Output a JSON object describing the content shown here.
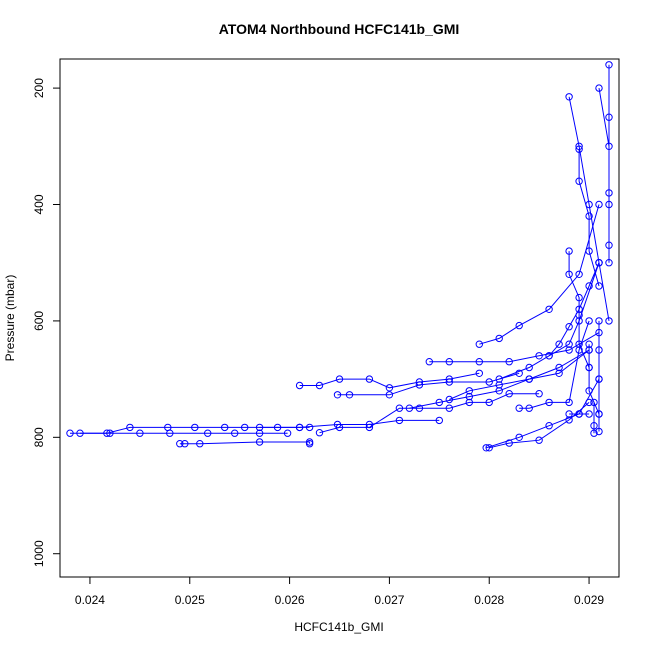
{
  "chart_data": {
    "type": "scatter",
    "title": "ATOM4 Northbound HCFC141b_GMI",
    "xlabel": "HCFC141b_GMI",
    "ylabel": "Pressure (mbar)",
    "xlim": [
      0.0237,
      0.0293
    ],
    "ylim": [
      1040,
      150
    ],
    "y_reversed": true,
    "x_ticks": [
      0.024,
      0.025,
      0.026,
      0.027,
      0.028,
      0.029
    ],
    "x_tick_labels": [
      "0.024",
      "0.025",
      "0.026",
      "0.027",
      "0.028",
      "0.029"
    ],
    "y_ticks": [
      200,
      400,
      600,
      800,
      1000
    ],
    "y_tick_labels": [
      "200",
      "400",
      "600",
      "800",
      "1000"
    ],
    "grid": false,
    "legend": "none",
    "marker": "open-circle",
    "color": "#0000ff",
    "series": [
      {
        "x": [
          0.0238,
          0.02417,
          0.0244,
          0.02478,
          0.02505,
          0.02535,
          0.02555,
          0.02588,
          0.0261,
          0.0262
        ],
        "y": [
          793,
          793,
          783,
          783,
          783,
          783,
          783,
          783,
          783,
          783
        ]
      },
      {
        "x": [
          0.0239,
          0.0242,
          0.0245,
          0.0248,
          0.02518,
          0.02545,
          0.0257,
          0.02598
        ],
        "y": [
          793,
          793,
          793,
          793,
          793,
          793,
          793,
          793
        ]
      },
      {
        "x": [
          0.0249,
          0.02495,
          0.0251,
          0.0257,
          0.0262,
          0.0262
        ],
        "y": [
          811,
          811,
          811,
          808,
          808,
          811
        ]
      },
      {
        "x": [
          0.0257,
          0.0261,
          0.02648,
          0.0268,
          0.0271,
          0.0275
        ],
        "y": [
          783,
          783,
          778,
          778,
          771,
          771
        ]
      },
      {
        "x": [
          0.0263,
          0.0265,
          0.0268,
          0.0271,
          0.0273,
          0.0276,
          0.0278,
          0.028,
          0.0282,
          0.0285
        ],
        "y": [
          792,
          783,
          783,
          750,
          750,
          750,
          740,
          740,
          725,
          725
        ]
      },
      {
        "x": [
          0.0261,
          0.0263,
          0.0265,
          0.0268,
          0.027,
          0.0273,
          0.0276,
          0.0279
        ],
        "y": [
          711,
          711,
          700,
          700,
          715,
          705,
          700,
          690
        ]
      },
      {
        "x": [
          0.02648,
          0.0266,
          0.027,
          0.0273,
          0.0276,
          0.028,
          0.0283
        ],
        "y": [
          727,
          727,
          727,
          710,
          705,
          705,
          690
        ]
      },
      {
        "x": [
          0.0272,
          0.0275,
          0.0278,
          0.0281,
          0.0284,
          0.0287,
          0.029
        ],
        "y": [
          750,
          740,
          730,
          720,
          700,
          680,
          650
        ]
      },
      {
        "x": [
          0.0274,
          0.0276,
          0.0279,
          0.0282,
          0.0285,
          0.0288,
          0.0291
        ],
        "y": [
          670,
          670,
          670,
          670,
          660,
          650,
          620
        ]
      },
      {
        "x": [
          0.0276,
          0.0278,
          0.0281,
          0.0284,
          0.0287,
          0.029
        ],
        "y": [
          735,
          720,
          710,
          700,
          690,
          650
        ]
      },
      {
        "x": [
          0.0279,
          0.0281,
          0.0283,
          0.0286,
          0.0289,
          0.0291
        ],
        "y": [
          640,
          630,
          608,
          580,
          520,
          400
        ]
      },
      {
        "x": [
          0.02797,
          0.0283,
          0.0286,
          0.0289,
          0.0291
        ],
        "y": [
          818,
          800,
          780,
          760,
          700
        ]
      },
      {
        "x": [
          0.028,
          0.0282,
          0.0285,
          0.0288,
          0.029
        ],
        "y": [
          818,
          810,
          805,
          770,
          740
        ]
      },
      {
        "x": [
          0.0281,
          0.0284,
          0.0286,
          0.0288,
          0.0289,
          0.0291
        ],
        "y": [
          700,
          680,
          660,
          640,
          600,
          500
        ]
      },
      {
        "x": [
          0.0283,
          0.0284,
          0.0286,
          0.0288,
          0.0289,
          0.029
        ],
        "y": [
          750,
          750,
          740,
          740,
          650,
          600
        ]
      },
      {
        "x": [
          0.0286,
          0.0287,
          0.0288,
          0.0289,
          0.029,
          0.0291
        ],
        "y": [
          660,
          640,
          610,
          580,
          540,
          500
        ]
      },
      {
        "x": [
          0.0288,
          0.0289,
          0.029,
          0.0291,
          0.0292
        ],
        "y": [
          215,
          300,
          400,
          500,
          600
        ]
      },
      {
        "x": [
          0.0288,
          0.0288,
          0.0289,
          0.0289,
          0.0289,
          0.029
        ],
        "y": [
          480,
          520,
          560,
          590,
          640,
          680
        ]
      },
      {
        "x": [
          0.0289,
          0.0289,
          0.029,
          0.029,
          0.0291
        ],
        "y": [
          305,
          360,
          420,
          480,
          540
        ]
      },
      {
        "x": [
          0.029,
          0.029,
          0.029,
          0.0291,
          0.0291
        ],
        "y": [
          640,
          680,
          720,
          760,
          790
        ]
      },
      {
        "x": [
          0.0291,
          0.0291,
          0.0291,
          0.0291
        ],
        "y": [
          600,
          650,
          700,
          760
        ]
      },
      {
        "x": [
          0.0291,
          0.0292,
          0.0292,
          0.0292
        ],
        "y": [
          200,
          300,
          400,
          500
        ]
      },
      {
        "x": [
          0.0292,
          0.0292,
          0.0292,
          0.0292
        ],
        "y": [
          160,
          250,
          380,
          470
        ]
      },
      {
        "x": [
          0.0288,
          0.0289,
          0.029
        ],
        "y": [
          760,
          760,
          760
        ]
      },
      {
        "x": [
          0.02905,
          0.02905,
          0.02905
        ],
        "y": [
          740,
          780,
          793
        ]
      }
    ]
  }
}
